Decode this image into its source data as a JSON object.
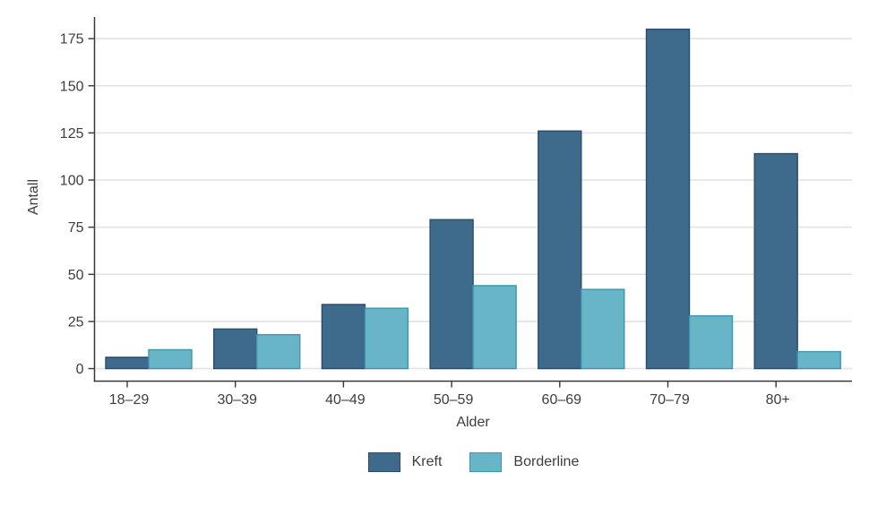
{
  "chart_data": {
    "type": "bar",
    "title": "",
    "categories": [
      "18–29",
      "30–39",
      "40–49",
      "50–59",
      "60–69",
      "70–79",
      "80+"
    ],
    "series": [
      {
        "name": "Kreft",
        "color": "#3E6A8C",
        "border_color": "#2B4D6D",
        "values": [
          6,
          21,
          34,
          79,
          126,
          180,
          114
        ]
      },
      {
        "name": "Borderline",
        "color": "#68B5C8",
        "border_color": "#3D96AD",
        "values": [
          10,
          18,
          32,
          44,
          42,
          28,
          9
        ]
      }
    ],
    "xlabel": "Alder",
    "ylabel": "Antall",
    "yticks": [
      0,
      25,
      50,
      75,
      100,
      125,
      150,
      175
    ],
    "ylim": [
      0,
      186
    ],
    "grid": "horizontal",
    "legend_position": "bottom",
    "background_color": "#ffffff",
    "gridline_color": "#e4e4e4",
    "axis_color": "#383838",
    "text_color": "#3d3d3d"
  }
}
